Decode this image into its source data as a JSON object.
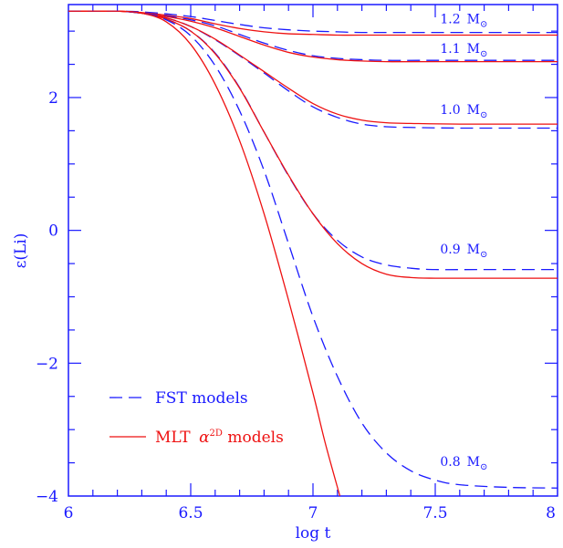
{
  "chart_data": {
    "type": "line",
    "xlabel": "log t",
    "ylabel": "ε(Li)",
    "xlim": [
      6,
      8
    ],
    "ylim": [
      -4,
      3.4
    ],
    "xticks": [
      {
        "value": 6,
        "label": "6"
      },
      {
        "value": 6.5,
        "label": "6.5"
      },
      {
        "value": 7,
        "label": "7"
      },
      {
        "value": 7.5,
        "label": "7.5"
      },
      {
        "value": 8,
        "label": "8"
      }
    ],
    "yticks": [
      {
        "value": -4,
        "label": "−4"
      },
      {
        "value": -2,
        "label": "−2"
      },
      {
        "value": 0,
        "label": "0"
      },
      {
        "value": 2,
        "label": "2"
      }
    ],
    "xminor_step": 0.1,
    "yminor_step": 0.5,
    "colors": {
      "fst": "#1a1aff",
      "mlt": "#ee1111",
      "axis": "#1a1aff"
    },
    "legend": {
      "placement": "bottom-left",
      "fst_label": "FST models",
      "mlt_label_prefix": "MLT ",
      "mlt_label_alpha": "α",
      "mlt_label_sup": "2D",
      "mlt_label_suffix": " models"
    },
    "mass_labels": [
      {
        "mass": "1.2",
        "unit": "M",
        "sub": "⊙",
        "x": 7.52,
        "y": 3.12
      },
      {
        "mass": "1.1",
        "unit": "M",
        "sub": "⊙",
        "x": 7.52,
        "y": 2.67
      },
      {
        "mass": "1.0",
        "unit": "M",
        "sub": "⊙",
        "x": 7.52,
        "y": 1.75
      },
      {
        "mass": "0.9",
        "unit": "M",
        "sub": "⊙",
        "x": 7.52,
        "y": -0.35
      },
      {
        "mass": "0.8",
        "unit": "M",
        "sub": "⊙",
        "x": 7.52,
        "y": -3.55
      }
    ],
    "series": [
      {
        "group": "FST",
        "mass": "1.2",
        "style": "dashed",
        "x": [
          6.0,
          6.2,
          6.3,
          6.4,
          6.5,
          6.6,
          6.7,
          6.8,
          6.9,
          7.0,
          7.1,
          7.2,
          7.5,
          8.0
        ],
        "y": [
          3.3,
          3.3,
          3.29,
          3.26,
          3.22,
          3.16,
          3.1,
          3.05,
          3.02,
          3.0,
          2.99,
          2.98,
          2.98,
          2.98
        ]
      },
      {
        "group": "MLT",
        "mass": "1.2",
        "style": "solid",
        "x": [
          6.0,
          6.2,
          6.3,
          6.4,
          6.5,
          6.6,
          6.7,
          6.8,
          6.9,
          7.0,
          7.1,
          7.2,
          7.5,
          8.0
        ],
        "y": [
          3.3,
          3.3,
          3.28,
          3.24,
          3.19,
          3.11,
          3.04,
          2.99,
          2.96,
          2.95,
          2.94,
          2.94,
          2.94,
          2.94
        ]
      },
      {
        "group": "FST",
        "mass": "1.1",
        "style": "dashed",
        "x": [
          6.0,
          6.2,
          6.3,
          6.4,
          6.5,
          6.6,
          6.7,
          6.8,
          6.9,
          7.0,
          7.1,
          7.2,
          7.3,
          7.5,
          8.0
        ],
        "y": [
          3.3,
          3.3,
          3.27,
          3.23,
          3.17,
          3.08,
          2.95,
          2.82,
          2.71,
          2.63,
          2.59,
          2.57,
          2.56,
          2.56,
          2.56
        ]
      },
      {
        "group": "MLT",
        "mass": "1.1",
        "style": "solid",
        "x": [
          6.0,
          6.2,
          6.3,
          6.4,
          6.5,
          6.6,
          6.7,
          6.8,
          6.9,
          7.0,
          7.1,
          7.2,
          7.3,
          7.5,
          8.0
        ],
        "y": [
          3.3,
          3.3,
          3.27,
          3.22,
          3.15,
          3.05,
          2.92,
          2.79,
          2.68,
          2.61,
          2.57,
          2.55,
          2.54,
          2.54,
          2.54
        ]
      },
      {
        "group": "FST",
        "mass": "1.0",
        "style": "dashed",
        "x": [
          6.0,
          6.2,
          6.3,
          6.4,
          6.5,
          6.6,
          6.7,
          6.8,
          6.9,
          7.0,
          7.1,
          7.2,
          7.3,
          7.4,
          7.6,
          8.0
        ],
        "y": [
          3.3,
          3.3,
          3.27,
          3.2,
          3.07,
          2.87,
          2.63,
          2.37,
          2.1,
          1.86,
          1.7,
          1.6,
          1.56,
          1.55,
          1.54,
          1.54
        ]
      },
      {
        "group": "MLT",
        "mass": "1.0",
        "style": "solid",
        "x": [
          6.0,
          6.2,
          6.3,
          6.4,
          6.5,
          6.6,
          6.7,
          6.8,
          6.9,
          7.0,
          7.1,
          7.2,
          7.3,
          7.4,
          7.6,
          8.0
        ],
        "y": [
          3.3,
          3.3,
          3.27,
          3.2,
          3.07,
          2.88,
          2.64,
          2.39,
          2.14,
          1.91,
          1.75,
          1.66,
          1.62,
          1.61,
          1.6,
          1.6
        ]
      },
      {
        "group": "FST",
        "mass": "0.9",
        "style": "dashed",
        "x": [
          6.0,
          6.2,
          6.3,
          6.4,
          6.5,
          6.6,
          6.7,
          6.8,
          6.9,
          7.0,
          7.1,
          7.2,
          7.3,
          7.4,
          7.5,
          7.7,
          8.0
        ],
        "y": [
          3.3,
          3.3,
          3.27,
          3.18,
          3.0,
          2.67,
          2.15,
          1.48,
          0.82,
          0.25,
          -0.15,
          -0.4,
          -0.52,
          -0.57,
          -0.59,
          -0.59,
          -0.59
        ]
      },
      {
        "group": "MLT",
        "mass": "0.9",
        "style": "solid",
        "x": [
          6.0,
          6.2,
          6.3,
          6.4,
          6.5,
          6.6,
          6.7,
          6.8,
          6.9,
          7.0,
          7.1,
          7.2,
          7.3,
          7.4,
          7.5,
          7.7,
          8.0
        ],
        "y": [
          3.3,
          3.3,
          3.27,
          3.18,
          3.0,
          2.66,
          2.14,
          1.48,
          0.83,
          0.25,
          -0.2,
          -0.5,
          -0.66,
          -0.71,
          -0.72,
          -0.72,
          -0.72
        ]
      },
      {
        "group": "FST",
        "mass": "0.8",
        "style": "dashed",
        "x": [
          6.0,
          6.2,
          6.3,
          6.4,
          6.5,
          6.6,
          6.7,
          6.8,
          6.9,
          7.0,
          7.1,
          7.2,
          7.3,
          7.4,
          7.5,
          7.6,
          7.8,
          8.0
        ],
        "y": [
          3.3,
          3.3,
          3.27,
          3.17,
          2.93,
          2.48,
          1.8,
          0.9,
          -0.2,
          -1.3,
          -2.2,
          -2.9,
          -3.35,
          -3.62,
          -3.76,
          -3.83,
          -3.87,
          -3.88
        ]
      },
      {
        "group": "MLT",
        "mass": "0.8",
        "style": "solid",
        "x": [
          6.0,
          6.2,
          6.3,
          6.4,
          6.5,
          6.6,
          6.7,
          6.8,
          6.9,
          7.0,
          7.05,
          7.11
        ],
        "y": [
          3.3,
          3.3,
          3.27,
          3.14,
          2.8,
          2.2,
          1.35,
          0.25,
          -1.05,
          -2.45,
          -3.2,
          -4.0
        ]
      }
    ]
  }
}
